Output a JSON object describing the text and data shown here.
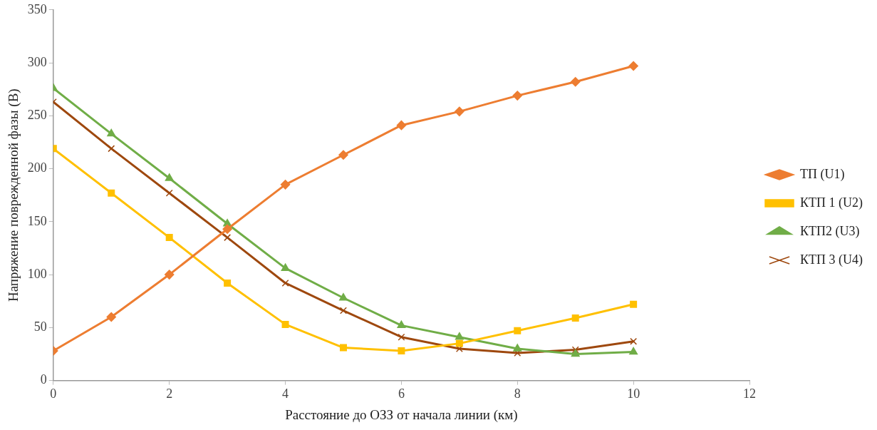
{
  "chart_data": {
    "type": "line",
    "xlabel": "Расстояние до ОЗЗ от начала линии (км)",
    "ylabel": "Напряжение поврежденной фазы (В)",
    "x": [
      0,
      1,
      2,
      3,
      4,
      5,
      6,
      7,
      8,
      9,
      10
    ],
    "xlim": [
      0,
      12
    ],
    "xticks": [
      0,
      2,
      4,
      6,
      8,
      10,
      12
    ],
    "ylim": [
      0,
      350
    ],
    "yticks": [
      0,
      50,
      100,
      150,
      200,
      250,
      300,
      350
    ],
    "grid": false,
    "legend": "right",
    "line_style": "solid",
    "series": [
      {
        "name": "ТП (U1)",
        "color": "#ed7d31",
        "marker": "diamond",
        "values": [
          28,
          60,
          100,
          143,
          185,
          213,
          241,
          254,
          269,
          282,
          297
        ]
      },
      {
        "name": "КТП 1 (U2)",
        "color": "#ffc000",
        "marker": "square",
        "values": [
          219,
          177,
          135,
          92,
          53,
          31,
          28,
          35,
          47,
          59,
          72
        ]
      },
      {
        "name": "КТП2 (U3)",
        "color": "#70ad47",
        "marker": "triangle",
        "values": [
          276,
          233,
          191,
          148,
          106,
          78,
          52,
          41,
          30,
          25,
          27
        ]
      },
      {
        "name": "КТП 3 (U4)",
        "color": "#9e480e",
        "marker": "cross",
        "values": [
          263,
          219,
          177,
          135,
          92,
          66,
          41,
          30,
          26,
          29,
          37
        ]
      }
    ]
  }
}
